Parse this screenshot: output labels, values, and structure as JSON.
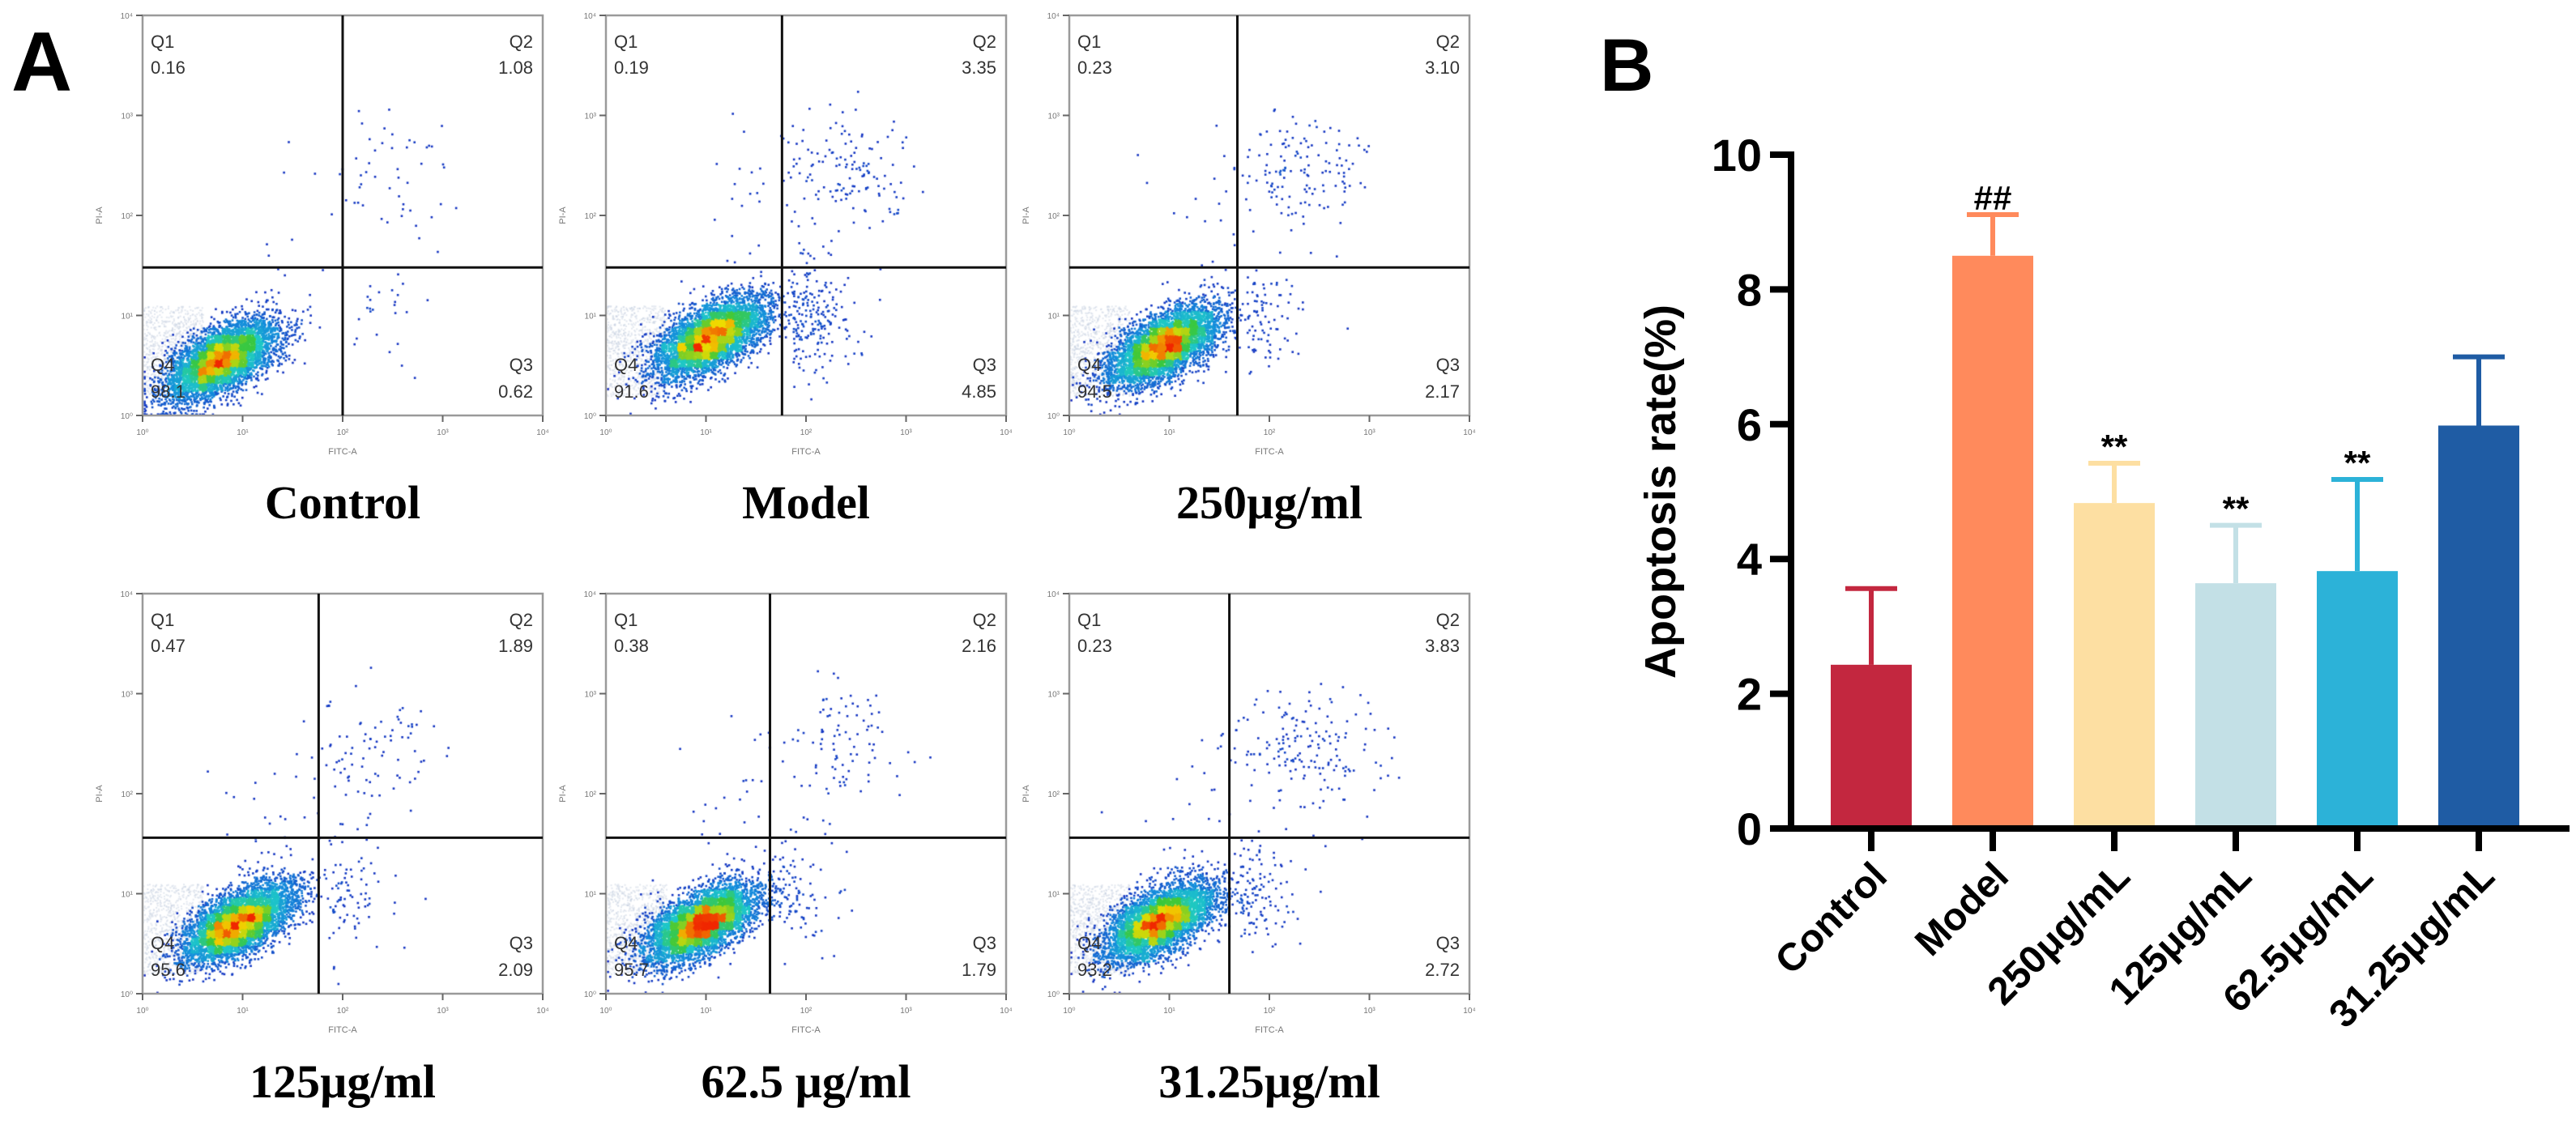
{
  "panel_labels": {
    "a": "A",
    "b": "B"
  },
  "flow_axes": {
    "x_label": "FITC-A",
    "y_label": "PI-A",
    "ticks": [
      "10⁰",
      "10¹",
      "10²",
      "10³",
      "10⁴"
    ]
  },
  "flow_plots": [
    {
      "title": "Control",
      "q1": "0.16",
      "q2": "1.08",
      "q3": "0.62",
      "q4": "98.1",
      "gate_x_log": 2.0,
      "gate_y_log": 1.48
    },
    {
      "title": "Model",
      "q1": "0.19",
      "q2": "3.35",
      "q3": "4.85",
      "q4": "91.6",
      "gate_x_log": 1.76,
      "gate_y_log": 1.48
    },
    {
      "title": "250µg/ml",
      "q1": "0.23",
      "q2": "3.10",
      "q3": "2.17",
      "q4": "94.5",
      "gate_x_log": 1.68,
      "gate_y_log": 1.48
    },
    {
      "title": "125µg/ml",
      "q1": "0.47",
      "q2": "1.89",
      "q3": "2.09",
      "q4": "95.6",
      "gate_x_log": 1.76,
      "gate_y_log": 1.56
    },
    {
      "title": "62.5 µg/ml",
      "q1": "0.38",
      "q2": "2.16",
      "q3": "1.79",
      "q4": "95.7",
      "gate_x_log": 1.64,
      "gate_y_log": 1.56
    },
    {
      "title": "31.25µg/ml",
      "q1": "0.23",
      "q2": "3.83",
      "q3": "2.72",
      "q4": "93.2",
      "gate_x_log": 1.6,
      "gate_y_log": 1.56
    }
  ],
  "quadrant_names": {
    "q1": "Q1",
    "q2": "Q2",
    "q3": "Q3",
    "q4": "Q4"
  },
  "chart_data": {
    "type": "bar",
    "title": "",
    "xlabel": "",
    "ylabel": "Apoptosis rate(%)",
    "ylim": [
      0,
      10
    ],
    "yticks": [
      "0",
      "2",
      "4",
      "6",
      "8",
      "10"
    ],
    "categories": [
      "Control",
      "Model",
      "250μg/mL",
      "125μg/mL",
      "62.5μg/mL",
      "31.25μg/mL"
    ],
    "values": [
      2.43,
      8.5,
      4.83,
      3.64,
      3.82,
      5.98
    ],
    "error_upper": [
      3.56,
      9.11,
      5.42,
      4.5,
      5.18,
      7.0
    ],
    "annotations": [
      "",
      "##",
      "**",
      "**",
      "**",
      ""
    ],
    "colors": [
      "#C3273F",
      "#FF8A5C",
      "#FDDFA2",
      "#C3E0E6",
      "#2CB2D8",
      "#1F5CA4"
    ]
  }
}
